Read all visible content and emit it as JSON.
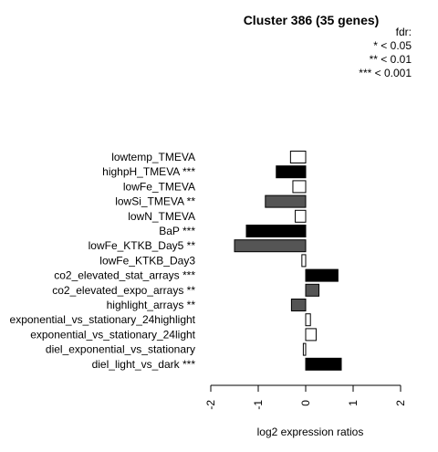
{
  "chart_data": {
    "type": "bar",
    "orientation": "horizontal",
    "title": "Cluster 386 (35 genes)",
    "xlabel": "log2 expression ratios",
    "ylabel": "",
    "xlim": [
      -2,
      2
    ],
    "xticks": [
      -2,
      -1,
      0,
      1,
      2
    ],
    "legend": {
      "title": "fdr:",
      "entries": [
        "* < 0.05",
        "** < 0.01",
        "*** < 0.001"
      ],
      "placement": "top-right"
    },
    "categories": [
      "lowtemp_TMEVA",
      "highpH_TMEVA ***",
      "lowFe_TMEVA",
      "lowSi_TMEVA **",
      "lowN_TMEVA",
      "BaP ***",
      "lowFe_KTKB_Day5 **",
      "lowFe_KTKB_Day3",
      "co2_elevated_stat_arrays ***",
      "co2_elevated_expo_arrays **",
      "highlight_arrays **",
      "exponential_vs_stationary_24highlight",
      "exponential_vs_stationary_24light",
      "diel_exponential_vs_stationary",
      "diel_light_vs_dark ***"
    ],
    "values": [
      -0.32,
      -0.62,
      -0.27,
      -0.85,
      -0.22,
      -1.25,
      -1.5,
      -0.08,
      0.68,
      0.28,
      -0.3,
      0.1,
      0.22,
      -0.05,
      0.75
    ],
    "significance": [
      "",
      "***",
      "",
      "**",
      "",
      "***",
      "**",
      "",
      "***",
      "**",
      "**",
      "",
      "",
      "",
      "***"
    ],
    "colors": {
      "none": "#ffffff",
      "**": "#555555",
      "***": "#000000",
      "stroke": "#000000"
    }
  }
}
